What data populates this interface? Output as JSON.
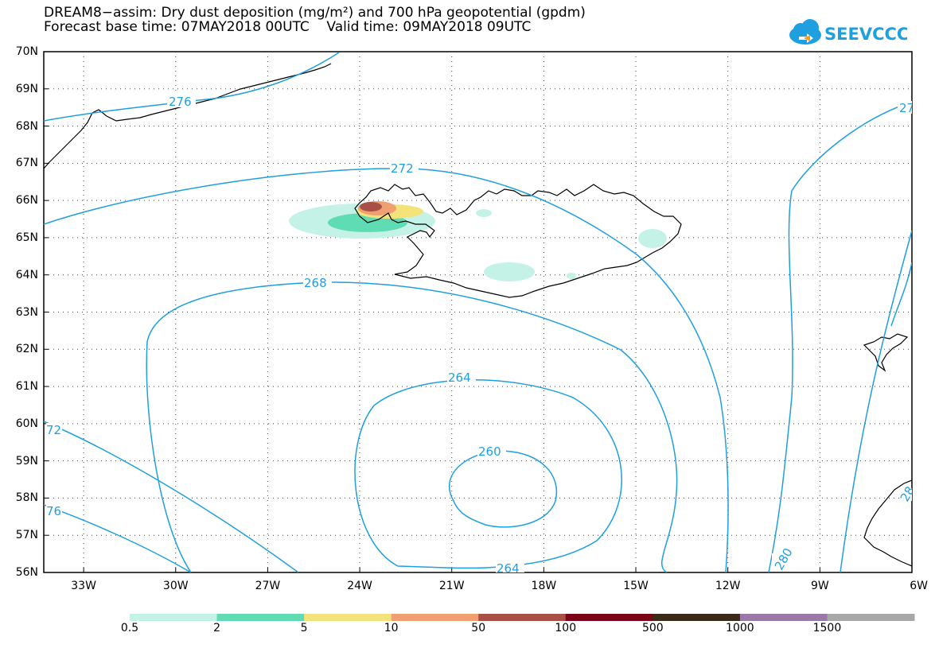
{
  "title": {
    "line1": "DREAM8−assim: Dry dust deposition (mg/m²) and 700 hPa geopotential (gpdm)",
    "line2": "Forecast base time: 07MAY2018 00UTC    Valid time: 09MAY2018 09UTC"
  },
  "logo": {
    "text": "SEEVCCC",
    "icon": "cloud-icon",
    "color": "#1e9fe0"
  },
  "map": {
    "projection": "lat-lon",
    "lat_range": [
      56,
      70
    ],
    "lon_range": [
      -34.3,
      -6
    ],
    "lat_ticks": [
      {
        "value": 70,
        "label": "70N"
      },
      {
        "value": 69,
        "label": "69N"
      },
      {
        "value": 68,
        "label": "68N"
      },
      {
        "value": 67,
        "label": "67N"
      },
      {
        "value": 66,
        "label": "66N"
      },
      {
        "value": 65,
        "label": "65N"
      },
      {
        "value": 64,
        "label": "64N"
      },
      {
        "value": 63,
        "label": "63N"
      },
      {
        "value": 62,
        "label": "62N"
      },
      {
        "value": 61,
        "label": "61N"
      },
      {
        "value": 60,
        "label": "60N"
      },
      {
        "value": 59,
        "label": "59N"
      },
      {
        "value": 58,
        "label": "58N"
      },
      {
        "value": 57,
        "label": "57N"
      },
      {
        "value": 56,
        "label": "56N"
      }
    ],
    "lon_ticks": [
      {
        "value": -33,
        "label": "33W"
      },
      {
        "value": -30,
        "label": "30W"
      },
      {
        "value": -27,
        "label": "27W"
      },
      {
        "value": -24,
        "label": "24W"
      },
      {
        "value": -21,
        "label": "21W"
      },
      {
        "value": -18,
        "label": "18W"
      },
      {
        "value": -15,
        "label": "15W"
      },
      {
        "value": -12,
        "label": "12W"
      },
      {
        "value": -9,
        "label": "9W"
      },
      {
        "value": -6,
        "label": "6W"
      }
    ],
    "grid": true,
    "contour_color": "#1e9fe0",
    "contour_labels": [
      "276",
      "272",
      "268",
      "264",
      "260",
      "264",
      "72",
      "76",
      "280",
      "27",
      "28"
    ]
  },
  "colorbar": {
    "colors": [
      "#c4f2e6",
      "#5fdcb4",
      "#f4e27a",
      "#f0a070",
      "#a85048",
      "#7a0418",
      "#3a2a1a",
      "#9a78a8",
      "#a8a8a8"
    ],
    "labels": [
      "0.5",
      "2",
      "5",
      "10",
      "50",
      "100",
      "500",
      "1000",
      "1500"
    ]
  }
}
